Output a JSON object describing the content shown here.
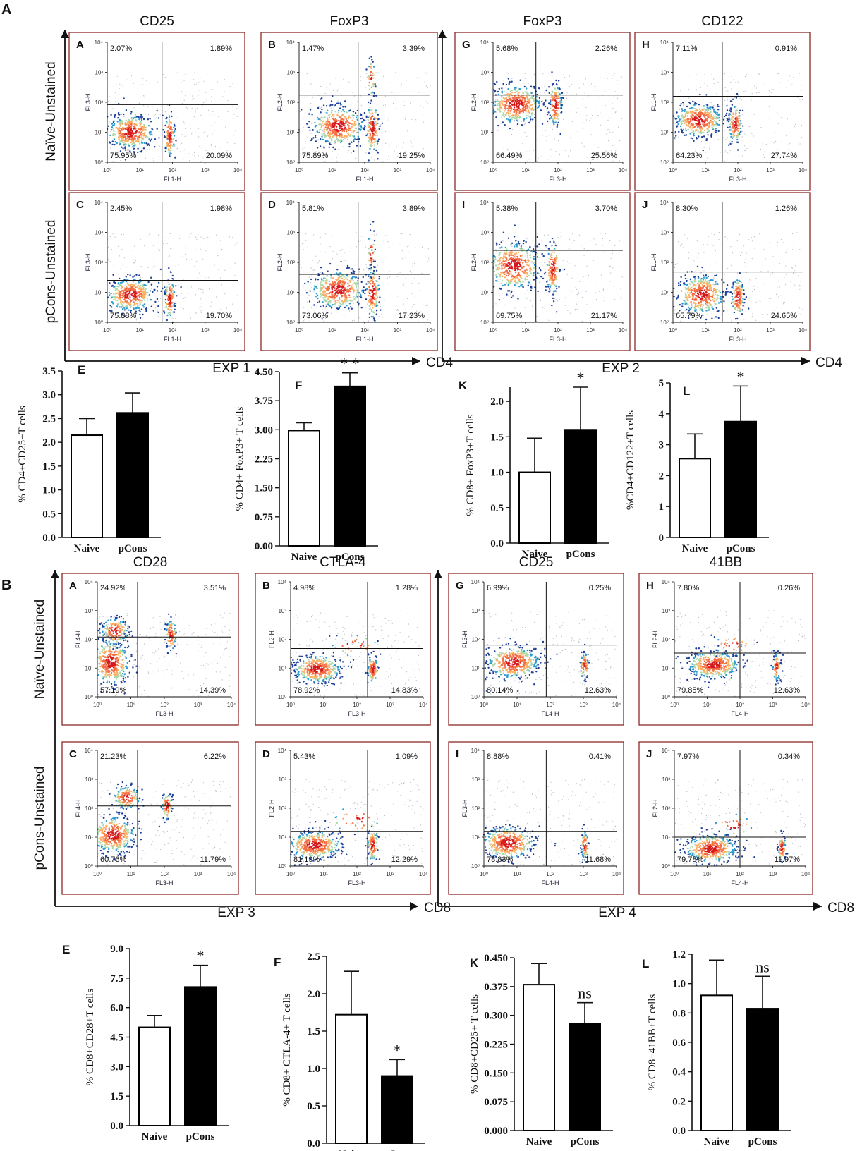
{
  "sections": [
    {
      "label": "A",
      "group_labels": [
        "EXP 1",
        "EXP 2"
      ],
      "x_axis_labels": [
        "CD4",
        "CD4"
      ],
      "row_labels": [
        "Naïve-Unstained",
        "pCons-Unstained"
      ],
      "column_titles": [
        "CD25",
        "FoxP3",
        "FoxP3",
        "CD122"
      ],
      "panels": [
        {
          "letter": "A",
          "xlabel": "FL1-H",
          "ylabel": "FL3-H",
          "quadrants": [
            "2.07%",
            "1.89%",
            "75.95%",
            "20.09%"
          ]
        },
        {
          "letter": "B",
          "xlabel": "FL1-H",
          "ylabel": "FL2-H",
          "quadrants": [
            "1.47%",
            "3.39%",
            "75.89%",
            "19.25%"
          ]
        },
        {
          "letter": "G",
          "xlabel": "FL3-H",
          "ylabel": "FL2-H",
          "quadrants": [
            "5.68%",
            "2.26%",
            "66.49%",
            "25.56%"
          ]
        },
        {
          "letter": "H",
          "xlabel": "FL3-H",
          "ylabel": "FL1-H",
          "quadrants": [
            "7.11%",
            "0.91%",
            "64.23%",
            "27.74%"
          ]
        },
        {
          "letter": "C",
          "xlabel": "FL1-H",
          "ylabel": "FL3-H",
          "quadrants": [
            "2.45%",
            "1.98%",
            "75.88%",
            "19.70%"
          ]
        },
        {
          "letter": "D",
          "xlabel": "FL1-H",
          "ylabel": "FL2-H",
          "quadrants": [
            "5.81%",
            "3.89%",
            "73.06%",
            "17.23%"
          ]
        },
        {
          "letter": "I",
          "xlabel": "FL3-H",
          "ylabel": "FL2-H",
          "quadrants": [
            "5.38%",
            "3.70%",
            "69.75%",
            "21.17%"
          ]
        },
        {
          "letter": "J",
          "xlabel": "FL3-H",
          "ylabel": "FL1-H",
          "quadrants": [
            "8.30%",
            "1.26%",
            "65.79%",
            "24.65%"
          ]
        }
      ]
    },
    {
      "label": "B",
      "group_labels": [
        "EXP 3",
        "EXP 4"
      ],
      "x_axis_labels": [
        "CD8",
        "CD8"
      ],
      "row_labels": [
        "Naïve-Unstained",
        "pCons-Unstained"
      ],
      "column_titles": [
        "CD28",
        "CTLA-4",
        "CD25",
        "41BB"
      ],
      "panels": [
        {
          "letter": "A",
          "xlabel": "FL3-H",
          "ylabel": "FL4-H",
          "quadrants": [
            "24.92%",
            "3.51%",
            "57.19%",
            "14.39%"
          ]
        },
        {
          "letter": "B",
          "xlabel": "FL3-H",
          "ylabel": "FL2-H",
          "quadrants": [
            "4.98%",
            "1.28%",
            "78.92%",
            "14.83%"
          ]
        },
        {
          "letter": "G",
          "xlabel": "FL4-H",
          "ylabel": "FL3-H",
          "quadrants": [
            "6.99%",
            "0.25%",
            "80.14%",
            "12.63%"
          ]
        },
        {
          "letter": "H",
          "xlabel": "FL4-H",
          "ylabel": "FL2-H",
          "quadrants": [
            "7.80%",
            "0.26%",
            "79.85%",
            "12.63%"
          ]
        },
        {
          "letter": "C",
          "xlabel": "FL3-H",
          "ylabel": "FL4-H",
          "quadrants": [
            "21.23%",
            "6.22%",
            "60.76%",
            "11.79%"
          ]
        },
        {
          "letter": "D",
          "xlabel": "FL3-H",
          "ylabel": "FL2-H",
          "quadrants": [
            "5.43%",
            "1.09%",
            "81.19%",
            "12.29%"
          ]
        },
        {
          "letter": "I",
          "xlabel": "FL4-H",
          "ylabel": "FL3-H",
          "quadrants": [
            "8.88%",
            "0.41%",
            "78.83%",
            "11.68%"
          ]
        },
        {
          "letter": "J",
          "xlabel": "FL4-H",
          "ylabel": "FL2-H",
          "quadrants": [
            "7.97%",
            "0.34%",
            "79.78%",
            "11.97%"
          ]
        }
      ]
    }
  ],
  "flow_tick_labels": [
    "10⁰",
    "10¹",
    "10²",
    "10³",
    "10⁴"
  ],
  "chart_data": [
    {
      "type": "bar",
      "panel": "A-E",
      "title": "E",
      "categories": [
        "Naive",
        "pCons"
      ],
      "values": [
        2.15,
        2.62
      ],
      "errors": [
        0.35,
        0.42
      ],
      "ylabel": "% CD4+CD25+T cells",
      "ylim": [
        0,
        3.5
      ],
      "yticks": [
        0.0,
        0.5,
        1.0,
        1.5,
        2.0,
        2.5,
        3.0,
        3.5
      ],
      "tick_labels": [
        "0.0",
        "0.5",
        "1.0",
        "1.5",
        "2.0",
        "2.5",
        "3.0",
        "3.5"
      ],
      "significance": []
    },
    {
      "type": "bar",
      "panel": "A-F",
      "title": "F",
      "categories": [
        "Naive",
        "pCons"
      ],
      "values": [
        2.98,
        4.12
      ],
      "errors": [
        0.2,
        0.35
      ],
      "ylabel": "% CD4+ FoxP3+ T cells",
      "ylim": [
        0,
        4.5
      ],
      "yticks": [
        0,
        0.75,
        1.5,
        2.25,
        3.0,
        3.75,
        4.5
      ],
      "tick_labels": [
        "0.00",
        "0.75",
        "1.50",
        "2.25",
        "3.00",
        "3.75",
        "4.50"
      ],
      "significance": [
        "",
        "* *"
      ]
    },
    {
      "type": "bar",
      "panel": "A-K",
      "title": "K",
      "categories": [
        "Naive",
        "pCons"
      ],
      "values": [
        1.0,
        1.6
      ],
      "errors": [
        0.48,
        0.6
      ],
      "ylabel": "% CD8+ FoxP3+T cells",
      "ylim": [
        0,
        2.2
      ],
      "yticks": [
        0,
        0.5,
        1.0,
        1.5,
        2.0
      ],
      "tick_labels": [
        "0.0",
        "0.5",
        "1.0",
        "1.5",
        "2.0"
      ],
      "significance": [
        "",
        "*"
      ]
    },
    {
      "type": "bar",
      "panel": "A-L",
      "title": "L",
      "categories": [
        "Naive",
        "pCons"
      ],
      "values": [
        2.55,
        3.75
      ],
      "errors": [
        0.8,
        1.15
      ],
      "ylabel": "%CD4+CD122+T cells",
      "ylim": [
        0,
        5
      ],
      "yticks": [
        0,
        1,
        2,
        3,
        4,
        5
      ],
      "tick_labels": [
        "0",
        "1",
        "2",
        "3",
        "4",
        "5"
      ],
      "significance": [
        "",
        "*"
      ]
    },
    {
      "type": "bar",
      "panel": "B-E",
      "title": "E",
      "categories": [
        "Naive",
        "pCons"
      ],
      "values": [
        5.0,
        7.05
      ],
      "errors": [
        0.6,
        1.1
      ],
      "ylabel": "% CD8+CD28+T cells",
      "ylim": [
        0,
        9
      ],
      "yticks": [
        0,
        1.5,
        3.0,
        4.5,
        6.0,
        7.5,
        9.0
      ],
      "tick_labels": [
        "0.0",
        "1.5",
        "3.0",
        "4.5",
        "6.0",
        "7.5",
        "9.0"
      ],
      "significance": [
        "",
        "*"
      ]
    },
    {
      "type": "bar",
      "panel": "B-F",
      "title": "F",
      "categories": [
        "Naive",
        "pCons"
      ],
      "values": [
        1.72,
        0.9
      ],
      "errors": [
        0.58,
        0.22
      ],
      "ylabel": "% CD8+ CTLA-4+ T cells",
      "ylim": [
        0,
        2.5
      ],
      "yticks": [
        0,
        0.5,
        1.0,
        1.5,
        2.0,
        2.5
      ],
      "tick_labels": [
        "0.0",
        "0.5",
        "1.0",
        "1.5",
        "2.0",
        "2.5"
      ],
      "significance": [
        "",
        "*"
      ]
    },
    {
      "type": "bar",
      "panel": "B-K",
      "title": "K",
      "categories": [
        "Naive",
        "pCons"
      ],
      "values": [
        0.38,
        0.278
      ],
      "errors": [
        0.055,
        0.055
      ],
      "ylabel": "% CD8+CD25+ T cells",
      "ylim": [
        0,
        0.45
      ],
      "yticks": [
        0,
        0.075,
        0.15,
        0.225,
        0.3,
        0.375,
        0.45
      ],
      "tick_labels": [
        "0.000",
        "0.075",
        "0.150",
        "0.225",
        "0.300",
        "0.375",
        "0.450"
      ],
      "significance": [
        "",
        "ns"
      ]
    },
    {
      "type": "bar",
      "panel": "B-L",
      "title": "L",
      "categories": [
        "Naive",
        "pCons"
      ],
      "values": [
        0.92,
        0.83
      ],
      "errors": [
        0.24,
        0.22
      ],
      "ylabel": "% CD8+41BB+T cells",
      "ylim": [
        0,
        1.2
      ],
      "yticks": [
        0,
        0.2,
        0.4,
        0.6,
        0.8,
        1.0,
        1.2
      ],
      "tick_labels": [
        "0.0",
        "0.2",
        "0.4",
        "0.6",
        "0.8",
        "1.0",
        "1.2"
      ],
      "significance": [
        "",
        "ns"
      ]
    }
  ]
}
